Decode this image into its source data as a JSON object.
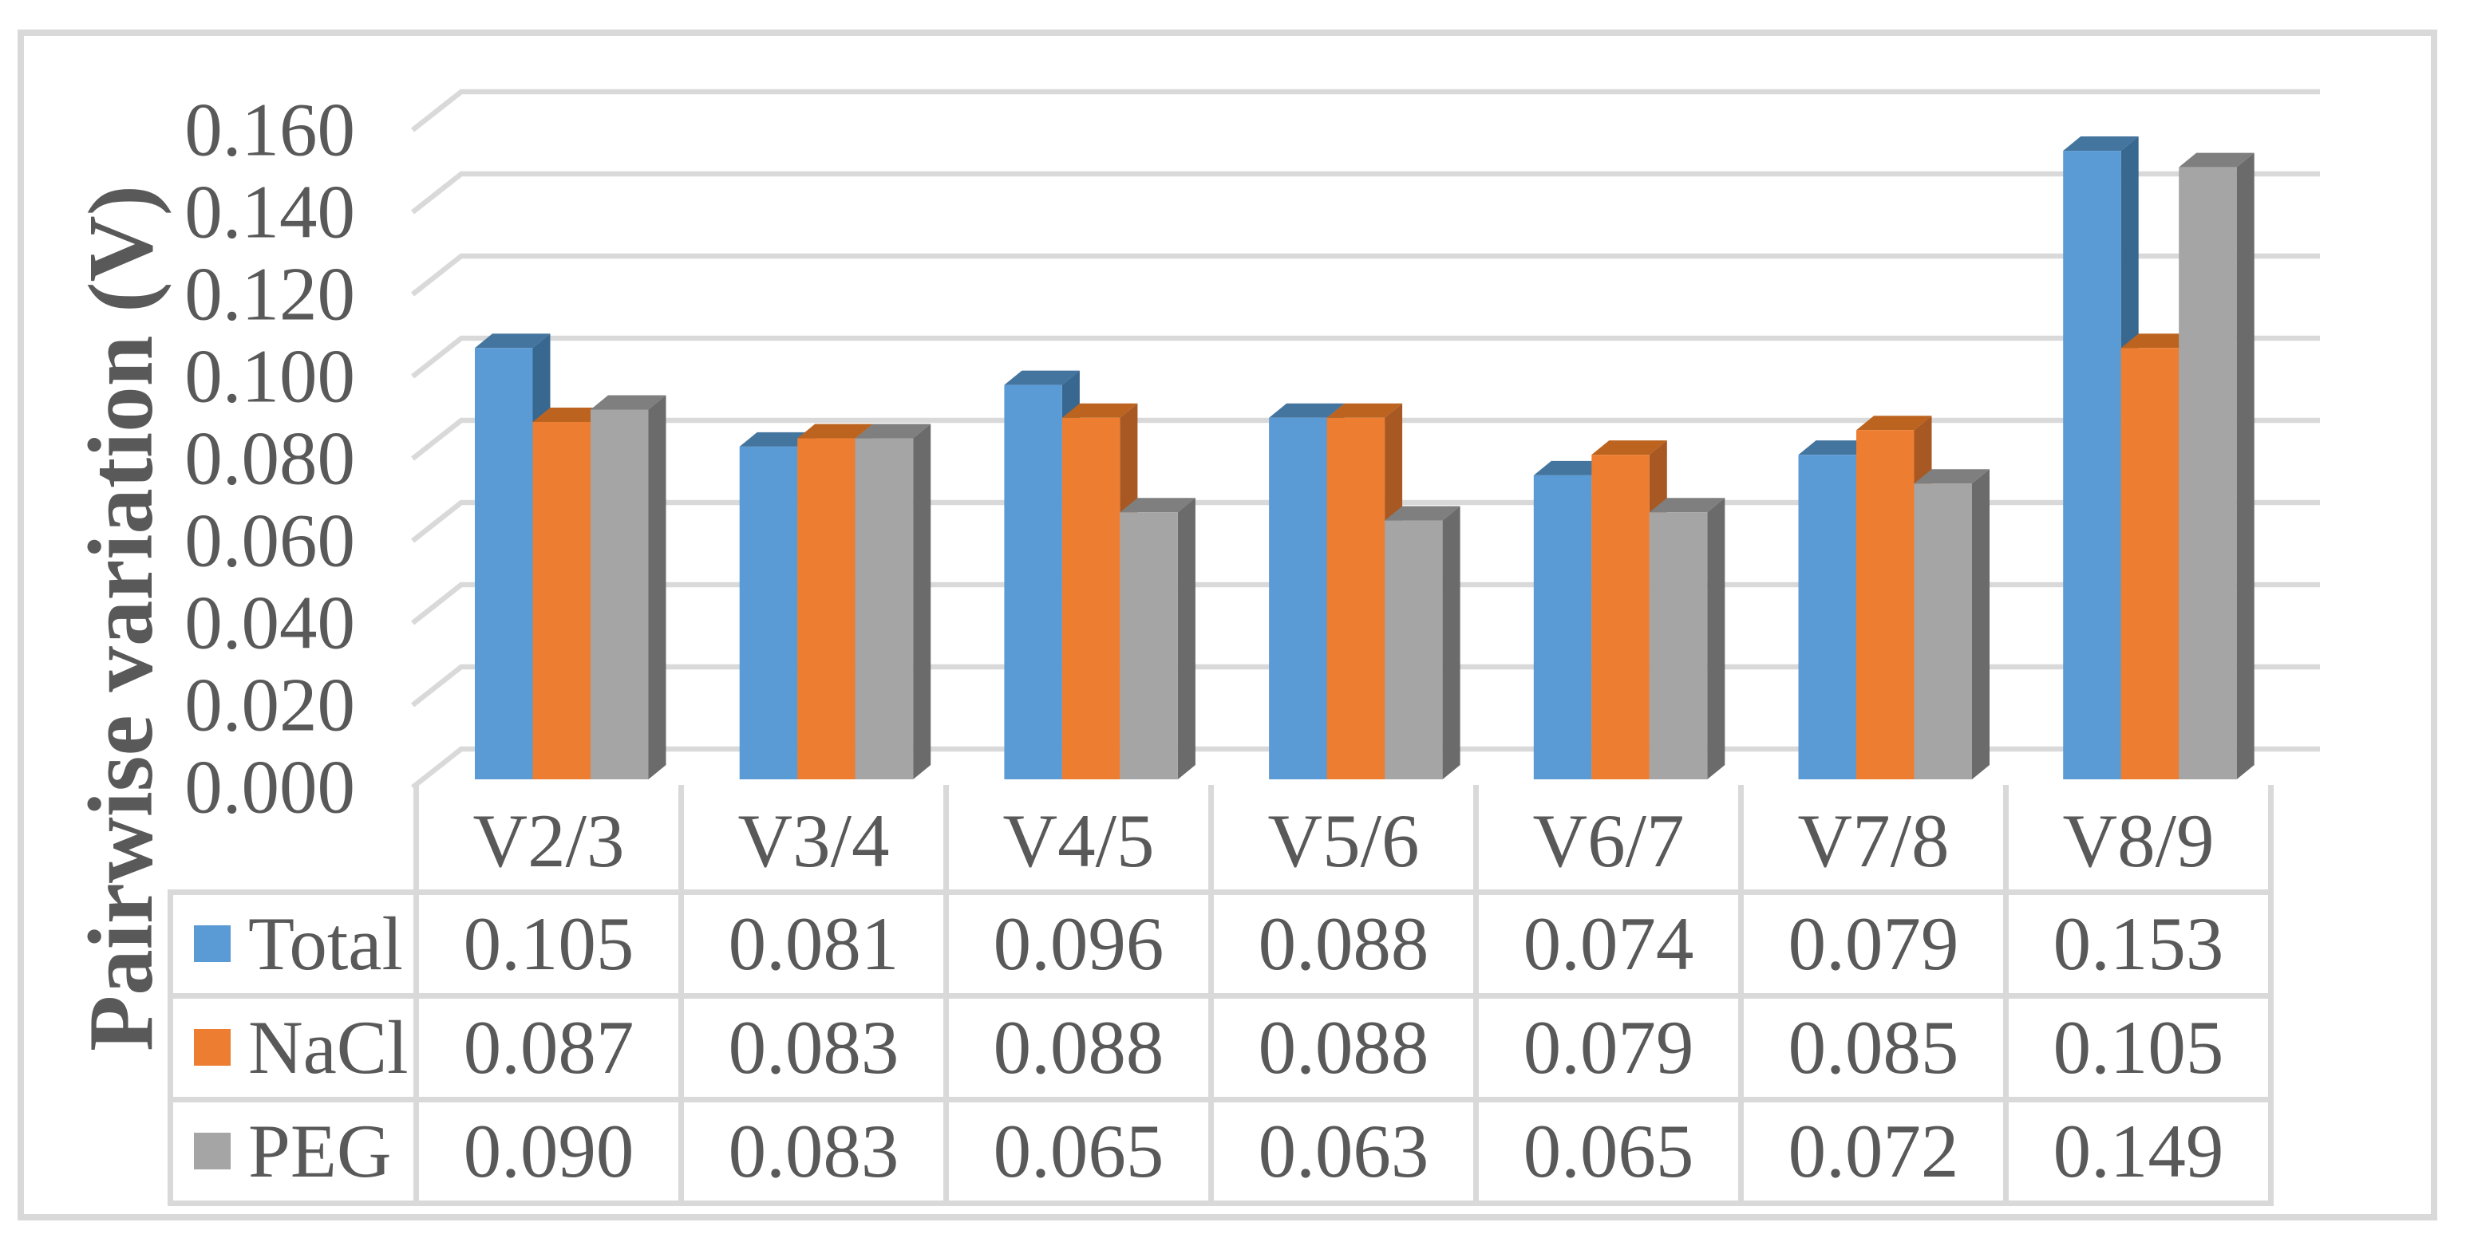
{
  "figure": {
    "background_color": "#FFFFFF",
    "border_color": "#D9D9D9",
    "text_color": "#595959"
  },
  "chart_data": {
    "type": "bar",
    "subtype": "3d-clustered-column",
    "title": "",
    "xlabel": "",
    "ylabel": "Pairwise variation (V)",
    "categories": [
      "V2/3",
      "V3/4",
      "V4/5",
      "V5/6",
      "V6/7",
      "V7/8",
      "V8/9"
    ],
    "series": [
      {
        "name": "Total",
        "values": [
          0.105,
          0.081,
          0.096,
          0.088,
          0.074,
          0.079,
          0.153
        ],
        "color_front": "#5B9BD5",
        "color_top": "#44759F",
        "color_side": "#38678F"
      },
      {
        "name": "NaCl",
        "values": [
          0.087,
          0.083,
          0.088,
          0.088,
          0.079,
          0.085,
          0.105
        ],
        "color_front": "#ED7D31",
        "color_top": "#BC641F",
        "color_side": "#A85823"
      },
      {
        "name": "PEG",
        "values": [
          0.09,
          0.083,
          0.065,
          0.063,
          0.065,
          0.072,
          0.149
        ],
        "color_front": "#A5A5A5",
        "color_top": "#7F7F7F",
        "color_side": "#6B6B6B"
      }
    ],
    "ylim": [
      0,
      0.16
    ],
    "ytick_step": 0.02,
    "ytick_decimals": 3,
    "value_decimals": 3,
    "grid": true,
    "gridline_color": "#D9D9D9",
    "legend_position": "data-table-row-headers",
    "data_table_shown": true
  }
}
